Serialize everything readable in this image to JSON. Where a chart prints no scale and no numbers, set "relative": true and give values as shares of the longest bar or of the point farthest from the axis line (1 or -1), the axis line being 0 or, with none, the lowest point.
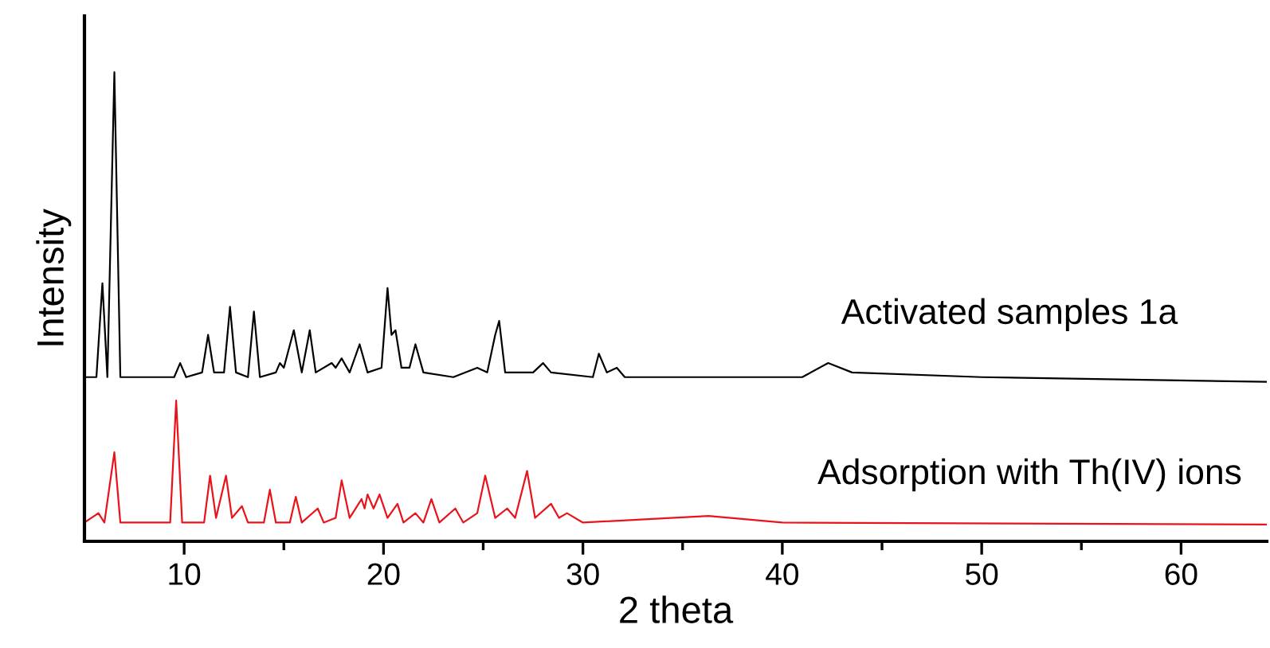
{
  "chart_data": {
    "type": "line",
    "xlabel": "2 theta",
    "ylabel": "Intensity",
    "relative": true,
    "xlim": [
      5,
      64.3
    ],
    "xticks": [
      10,
      {
        "value": 15,
        "label": null
      },
      20,
      {
        "value": 25,
        "label": null
      },
      30,
      {
        "value": 35,
        "label": null
      },
      40,
      {
        "value": 45,
        "label": null
      },
      50,
      {
        "value": 55,
        "label": null
      },
      60
    ],
    "grid": false,
    "legend": false,
    "marker": "none",
    "line_style": "solid",
    "tick_labels": "x",
    "series": [
      {
        "name": "Activated samples 1a",
        "color": "#000000",
        "x": [
          5.0,
          5.6,
          5.9,
          6.15,
          6.5,
          6.8,
          9.5,
          9.8,
          10.1,
          10.9,
          11.2,
          11.5,
          12.0,
          12.3,
          12.6,
          13.2,
          13.5,
          13.8,
          14.6,
          14.8,
          15.0,
          15.5,
          15.9,
          16.3,
          16.6,
          17.4,
          17.6,
          17.9,
          18.3,
          18.8,
          19.2,
          19.9,
          20.2,
          20.4,
          20.6,
          20.9,
          21.3,
          21.6,
          22.0,
          23.5,
          24.7,
          25.2,
          25.6,
          25.8,
          26.1,
          27.5,
          28.0,
          28.4,
          30.5,
          30.8,
          31.2,
          31.7,
          32.1,
          36.0,
          41.0,
          42.3,
          43.5,
          50.0,
          64.3
        ],
        "values": [
          0.35,
          0.35,
          0.55,
          0.35,
          1.0,
          0.35,
          0.35,
          0.38,
          0.35,
          0.36,
          0.44,
          0.36,
          0.36,
          0.5,
          0.36,
          0.35,
          0.49,
          0.35,
          0.36,
          0.38,
          0.37,
          0.45,
          0.36,
          0.45,
          0.36,
          0.38,
          0.37,
          0.39,
          0.36,
          0.42,
          0.36,
          0.37,
          0.54,
          0.44,
          0.45,
          0.37,
          0.37,
          0.42,
          0.36,
          0.35,
          0.37,
          0.36,
          0.44,
          0.47,
          0.36,
          0.36,
          0.38,
          0.36,
          0.35,
          0.4,
          0.36,
          0.37,
          0.35,
          0.35,
          0.35,
          0.38,
          0.36,
          0.35,
          0.34
        ]
      },
      {
        "name": "Adsorption with Th(IV) ions",
        "color": "#e8141c",
        "x": [
          5.0,
          5.7,
          6.0,
          6.5,
          6.8,
          9.3,
          9.6,
          9.9,
          11.0,
          11.3,
          11.6,
          12.1,
          12.4,
          12.9,
          13.2,
          14.0,
          14.3,
          14.6,
          15.3,
          15.6,
          15.9,
          16.7,
          17.0,
          17.6,
          17.9,
          18.3,
          18.9,
          19.05,
          19.2,
          19.5,
          19.8,
          20.2,
          20.7,
          21.0,
          21.6,
          22.0,
          22.4,
          22.8,
          23.6,
          24.0,
          24.7,
          25.1,
          25.6,
          26.2,
          26.6,
          27.2,
          27.6,
          28.4,
          28.8,
          29.2,
          30.0,
          36.3,
          40.0,
          64.3
        ],
        "values": [
          0.04,
          0.06,
          0.04,
          0.19,
          0.04,
          0.04,
          0.3,
          0.04,
          0.04,
          0.14,
          0.05,
          0.14,
          0.05,
          0.075,
          0.04,
          0.04,
          0.11,
          0.04,
          0.04,
          0.095,
          0.04,
          0.07,
          0.04,
          0.05,
          0.13,
          0.05,
          0.09,
          0.07,
          0.1,
          0.07,
          0.1,
          0.05,
          0.08,
          0.04,
          0.06,
          0.04,
          0.09,
          0.04,
          0.07,
          0.04,
          0.06,
          0.14,
          0.05,
          0.07,
          0.05,
          0.15,
          0.05,
          0.08,
          0.05,
          0.06,
          0.04,
          0.054,
          0.04,
          0.036
        ]
      }
    ]
  }
}
